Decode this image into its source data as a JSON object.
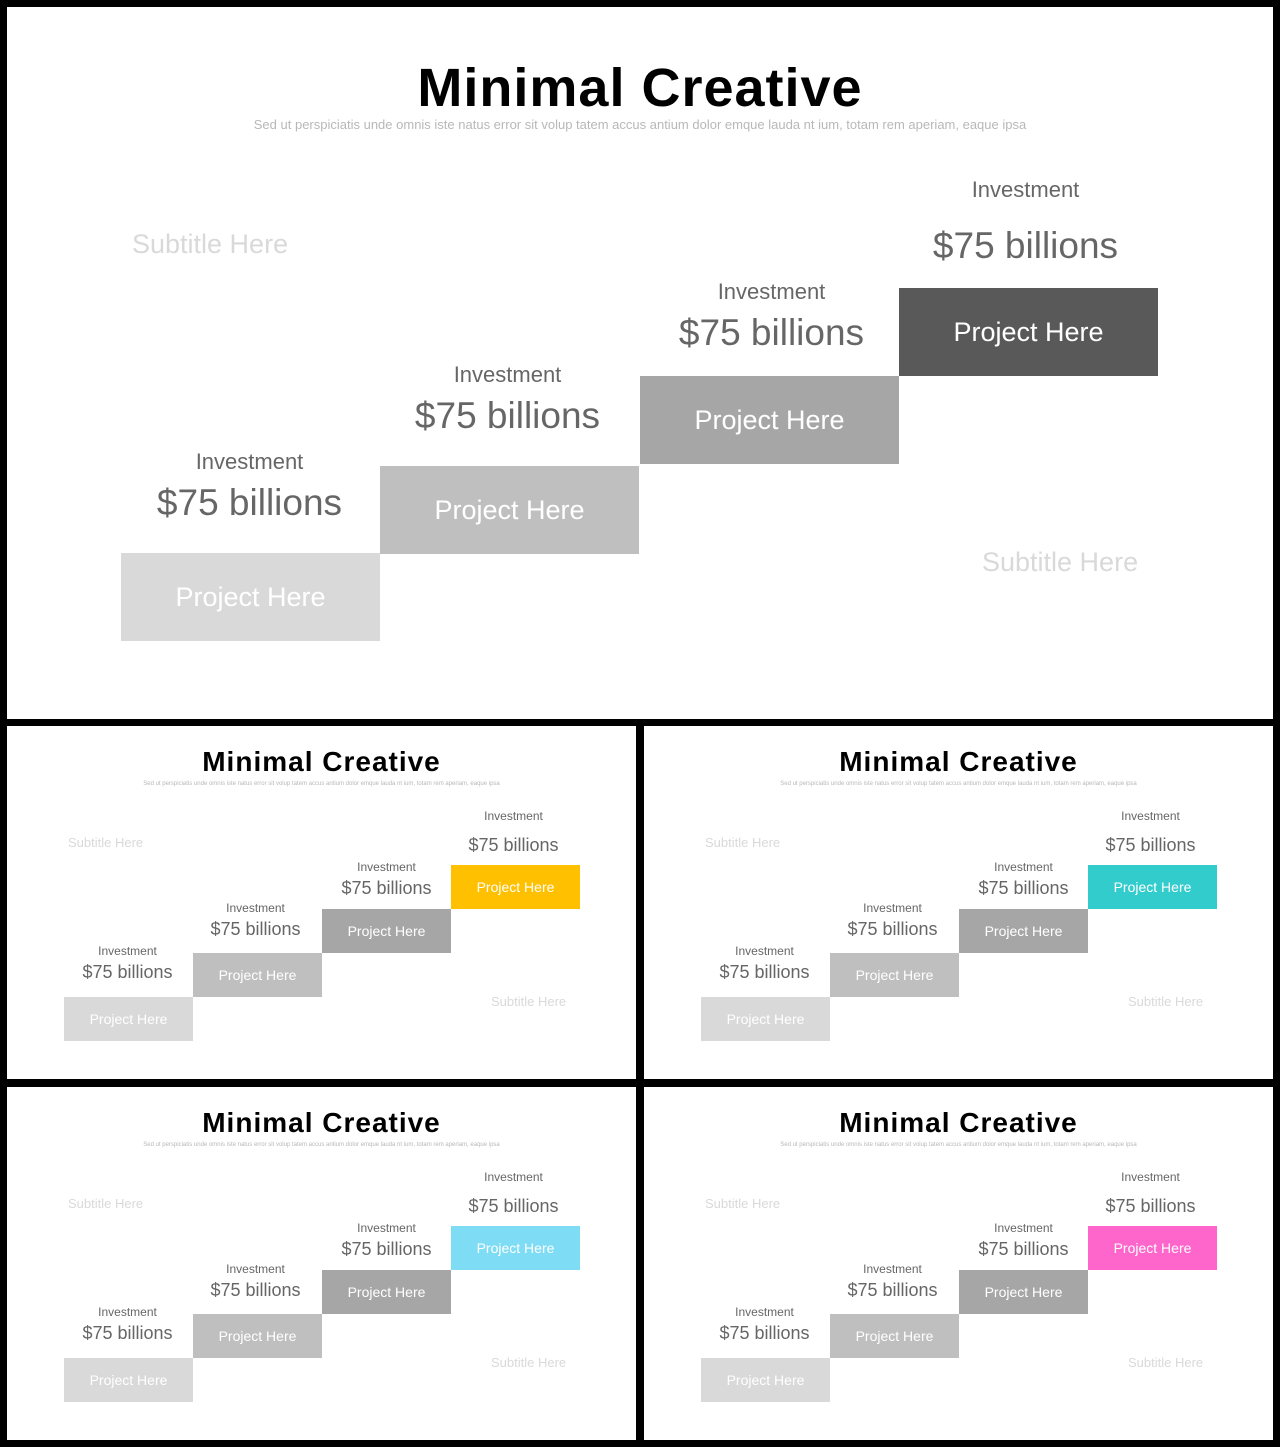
{
  "slide": {
    "title": "Minimal Creative",
    "subtitle_line": "Sed ut perspiciatis unde omnis iste natus error sit volup tatem accus antium dolor emque lauda nt ium, totam rem aperiam, eaque ipsa",
    "subtitle_left": "Subtitle Here",
    "subtitle_right": "Subtitle Here",
    "steps": [
      {
        "investment": "Investment",
        "amount": "$75 billions",
        "label": "Project Here"
      },
      {
        "investment": "Investment",
        "amount": "$75 billions",
        "label": "Project Here"
      },
      {
        "investment": "Investment",
        "amount": "$75 billions",
        "label": "Project Here"
      },
      {
        "investment": "Investment",
        "amount": "$75 billions",
        "label": "Project Here"
      }
    ]
  },
  "colors": {
    "step1": "#d9d9d9",
    "step2": "#bfbfbf",
    "step3": "#a6a6a6",
    "step4_main": "#595959",
    "accent_variants": [
      "#ffc000",
      "#33cccc",
      "#7fdcf5",
      "#ff66cc"
    ]
  }
}
